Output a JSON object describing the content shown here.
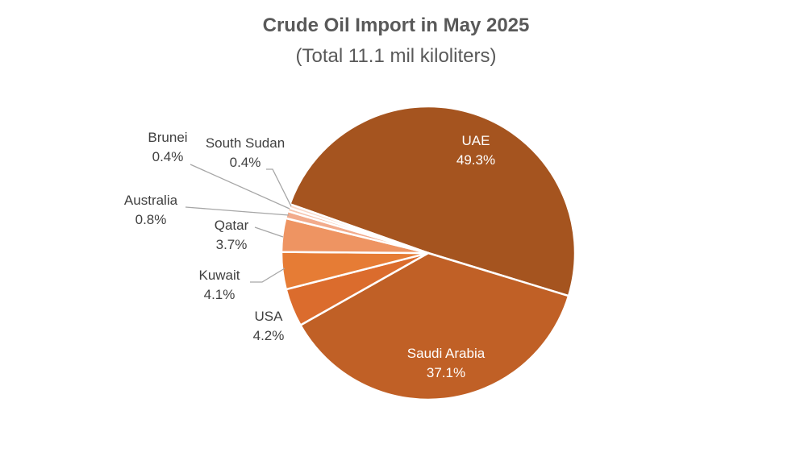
{
  "chart_data": {
    "type": "pie",
    "title": "Crude Oil Import in May 2025",
    "subtitle": "(Total 11.1 mil kiloliters)",
    "slices": [
      {
        "label": "UAE",
        "value": 49.3,
        "pct_text": "49.3%",
        "color": "#A5541F"
      },
      {
        "label": "Saudi Arabia",
        "value": 37.1,
        "pct_text": "37.1%",
        "color": "#C06026"
      },
      {
        "label": "USA",
        "value": 4.2,
        "pct_text": "4.2%",
        "color": "#DB6C2D"
      },
      {
        "label": "Kuwait",
        "value": 4.1,
        "pct_text": "4.1%",
        "color": "#E67C35"
      },
      {
        "label": "Qatar",
        "value": 3.7,
        "pct_text": "3.7%",
        "color": "#EE9462"
      },
      {
        "label": "Australia",
        "value": 0.8,
        "pct_text": "0.8%",
        "color": "#F2AB8C"
      },
      {
        "label": "Brunei",
        "value": 0.4,
        "pct_text": "0.4%",
        "color": "#F6C3AD"
      },
      {
        "label": "South Sudan",
        "value": 0.4,
        "pct_text": "0.4%",
        "color": "#F9D8C8"
      }
    ],
    "label_text_color": "#404040",
    "inside_label_color": "#ffffff",
    "leader_line_color": "#A6A6A6"
  }
}
